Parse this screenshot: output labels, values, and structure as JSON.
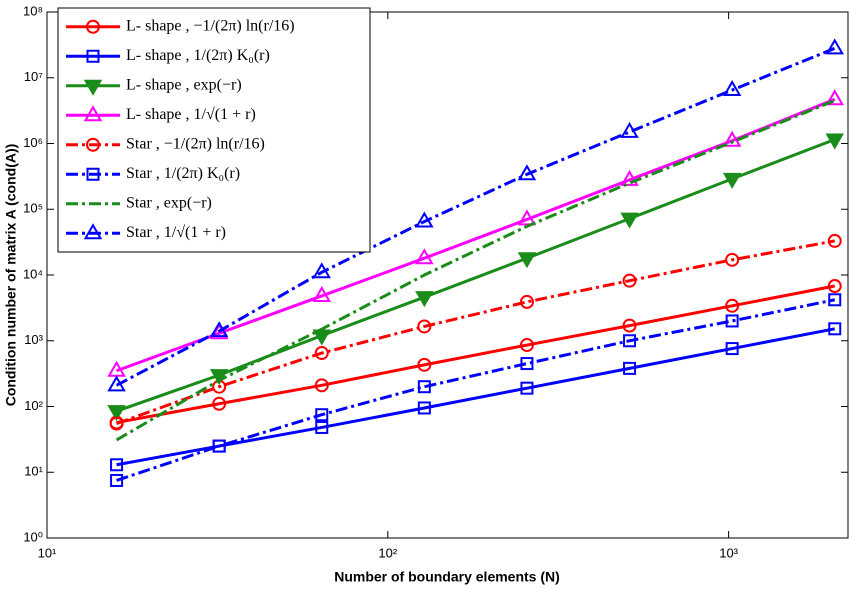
{
  "chart_data": {
    "type": "line",
    "xlabel": "Number of boundary elements (N)",
    "ylabel": "Condition number of matrix A (cond(A))",
    "xlog": true,
    "ylog": true,
    "xlim": [
      10,
      2240
    ],
    "ylim": [
      1,
      100000000
    ],
    "xticks": [
      {
        "value": 10,
        "label": "10¹"
      },
      {
        "value": 100,
        "label": "10²"
      },
      {
        "value": 1000,
        "label": "10³"
      }
    ],
    "yticks": [
      {
        "value": 1,
        "label": "10⁰"
      },
      {
        "value": 10,
        "label": "10¹"
      },
      {
        "value": 100,
        "label": "10²"
      },
      {
        "value": 1000,
        "label": "10³"
      },
      {
        "value": 10000,
        "label": "10⁴"
      },
      {
        "value": 100000,
        "label": "10⁵"
      },
      {
        "value": 1000000,
        "label": "10⁶"
      },
      {
        "value": 10000000,
        "label": "10⁷"
      },
      {
        "value": 100000000,
        "label": "10⁸"
      }
    ],
    "legend": "upper left",
    "x": [
      16,
      32,
      64,
      128,
      256,
      512,
      1024,
      2048
    ],
    "series": [
      {
        "name": "L- shape , −1/(2π) ln(r/16)",
        "color": "#ff0000",
        "dash": "solid",
        "marker": "circle",
        "values": [
          57,
          110,
          210,
          430,
          860,
          1700,
          3400,
          6800
        ]
      },
      {
        "name": "L- shape , 1/(2π) K₀(r)",
        "color": "#0000ff",
        "dash": "solid",
        "marker": "square",
        "values": [
          13,
          25,
          48,
          95,
          190,
          380,
          760,
          1520
        ]
      },
      {
        "name": "L- shape , exp(−r)",
        "color": "#1a8c1a",
        "dash": "solid",
        "marker": "triangle-down",
        "values": [
          85,
          300,
          1200,
          4600,
          18000,
          72000,
          290000,
          1150000
        ]
      },
      {
        "name": "L- shape , 1/√(1 + r)",
        "color": "#ff00ff",
        "dash": "solid",
        "marker": "triangle",
        "values": [
          350,
          1300,
          4800,
          18000,
          70000,
          280000,
          1100000,
          4700000
        ]
      },
      {
        "name": "Star , −1/(2π) ln(r/16)",
        "color": "#ff0000",
        "dash": "dashdot",
        "marker": "circle",
        "values": [
          55,
          200,
          650,
          1650,
          3900,
          8200,
          17000,
          33000
        ]
      },
      {
        "name": "Star , 1/(2π) K₀(r)",
        "color": "#0000ff",
        "dash": "dashdot",
        "marker": "square",
        "values": [
          7.5,
          25,
          75,
          200,
          450,
          1000,
          2000,
          4200
        ]
      },
      {
        "name": "Star , exp(−r)",
        "color": "#1a8c1a",
        "dash": "dashdot",
        "marker": "none",
        "values": [
          31,
          250,
          1500,
          10000,
          55000,
          250000,
          1050000,
          4500000
        ]
      },
      {
        "name": "Star , 1/√(1 + r)",
        "color": "#0000ff",
        "dash": "dashdot",
        "marker": "triangle",
        "values": [
          210,
          1400,
          11000,
          65000,
          340000,
          1500000,
          6500000,
          28000000
        ]
      }
    ]
  }
}
